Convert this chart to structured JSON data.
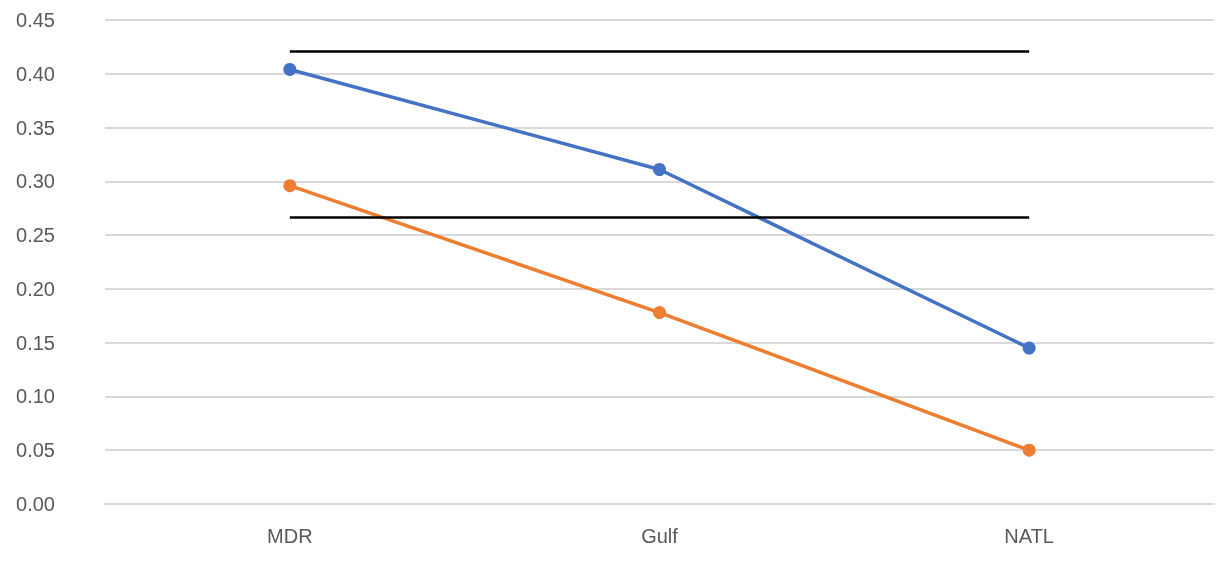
{
  "chart_data": {
    "type": "line",
    "categories": [
      "MDR",
      "Gulf",
      "NATL"
    ],
    "series": [
      {
        "color": "#4472c4",
        "values": [
          0.404,
          0.311,
          0.145
        ]
      },
      {
        "color": "#ed7d31",
        "values": [
          0.296,
          0.178,
          0.05
        ]
      }
    ],
    "ylim": [
      0,
      0.45
    ],
    "yticks": [
      {
        "value": 0,
        "label": "0.00"
      },
      {
        "value": 0.05,
        "label": "0.05"
      },
      {
        "value": 0.1,
        "label": "0.10"
      },
      {
        "value": 0.15,
        "label": "0.15"
      },
      {
        "value": 0.2,
        "label": "0.20"
      },
      {
        "value": 0.25,
        "label": "0.25"
      },
      {
        "value": 0.3,
        "label": "0.30"
      },
      {
        "value": 0.35,
        "label": "0.35"
      },
      {
        "value": 0.4,
        "label": "0.40"
      },
      {
        "value": 0.45,
        "label": "0.45"
      }
    ],
    "ref_lines": [
      {
        "axis": "y",
        "value": 0.421,
        "color": "#000000"
      },
      {
        "axis": "y",
        "value": 0.267,
        "color": "#000000"
      }
    ],
    "grid": "y",
    "marker": "circle",
    "line_style": "solid"
  }
}
